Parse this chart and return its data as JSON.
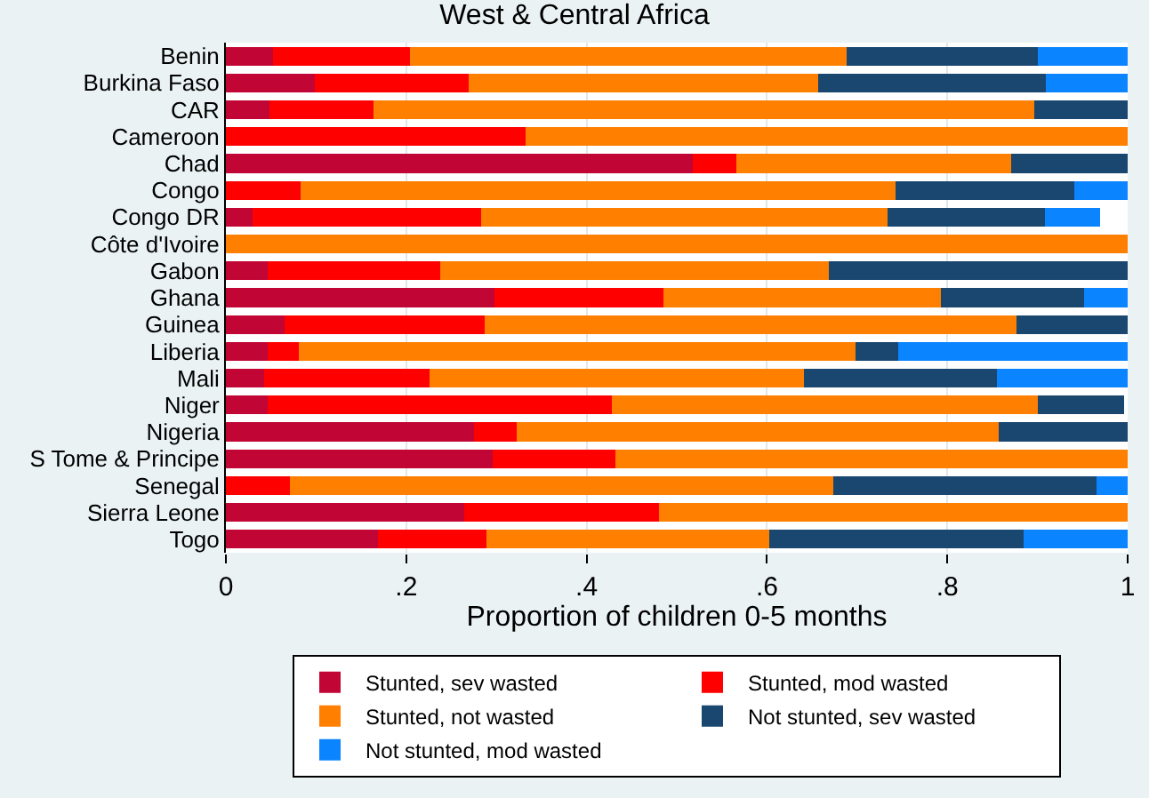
{
  "chart_data": {
    "type": "bar",
    "title": "West & Central Africa",
    "orientation": "horizontal",
    "stacked": true,
    "categories": [
      "Benin",
      "Burkina Faso",
      "CAR",
      "Cameroon",
      "Chad",
      "Congo",
      "Congo DR",
      "Côte d'Ivoire",
      "Gabon",
      "Ghana",
      "Guinea",
      "Liberia",
      "Mali",
      "Niger",
      "Nigeria",
      "S Tome & Principe",
      "Senegal",
      "Sierra Leone",
      "Togo"
    ],
    "series": [
      {
        "name": "Stunted, sev wasted",
        "color": "#c10534",
        "values": [
          0.052,
          0.099,
          0.048,
          0,
          0.518,
          0,
          0.03,
          0,
          0.046,
          0.298,
          0.065,
          0.046,
          0.042,
          0.046,
          0.275,
          0.296,
          0,
          0.264,
          0.169
        ]
      },
      {
        "name": "Stunted, mod wasted",
        "color": "#ff0000",
        "values": [
          0.152,
          0.17,
          0.116,
          0.332,
          0.048,
          0.083,
          0.253,
          0,
          0.192,
          0.187,
          0.222,
          0.035,
          0.184,
          0.382,
          0.047,
          0.136,
          0.071,
          0.216,
          0.12
        ]
      },
      {
        "name": "Stunted, not wasted",
        "color": "#ff7f00",
        "values": [
          0.484,
          0.388,
          0.732,
          0.668,
          0.305,
          0.66,
          0.451,
          1,
          0.431,
          0.308,
          0.59,
          0.617,
          0.415,
          0.472,
          0.535,
          0.568,
          0.603,
          0.52,
          0.314
        ]
      },
      {
        "name": "Not stunted, sev wasted",
        "color": "#1a476f",
        "values": [
          0.212,
          0.252,
          0.104,
          0,
          0.129,
          0.198,
          0.174,
          0,
          0.331,
          0.159,
          0.123,
          0.048,
          0.214,
          0.096,
          0.143,
          0,
          0.291,
          0,
          0.282
        ]
      },
      {
        "name": "Not stunted, mod wasted",
        "color": "#0a84ff",
        "values": [
          0.1,
          0.091,
          0,
          0,
          0,
          0.059,
          0.061,
          0,
          0,
          0.048,
          0,
          0.254,
          0.145,
          0,
          0,
          0,
          0.035,
          0,
          0.115
        ]
      }
    ],
    "xlabel": "Proportion of children 0-5 months",
    "xlim": [
      0,
      1
    ],
    "xticks": [
      0,
      {
        "value": 0.2,
        "label": ".2"
      },
      {
        "value": 0.4,
        "label": ".4"
      },
      {
        "value": 0.6,
        "label": ".6"
      },
      {
        "value": 0.8,
        "label": ".8"
      },
      1
    ],
    "grid": "x",
    "legend": "bottom"
  }
}
